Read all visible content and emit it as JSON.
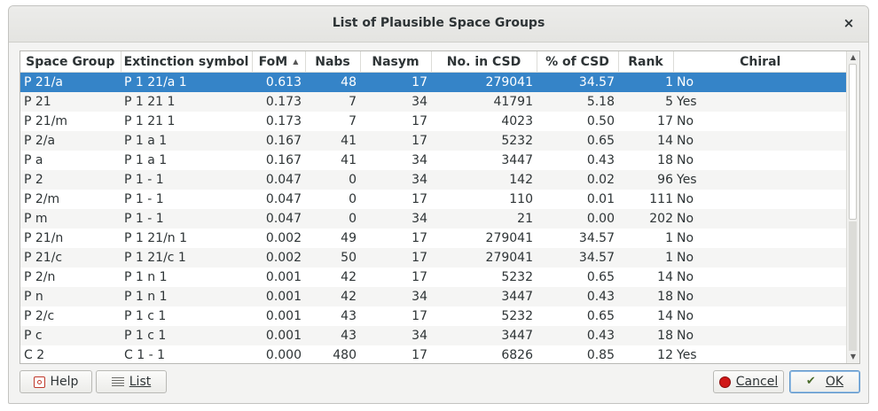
{
  "window": {
    "title": "List of Plausible Space Groups",
    "close_glyph": "×"
  },
  "table": {
    "columns": [
      "Space Group",
      "Extinction symbol",
      "FoM",
      "Nabs",
      "Nasym",
      "No. in CSD",
      "% of CSD",
      "Rank",
      "Chiral"
    ],
    "sort_indicator": "▲",
    "rows": [
      {
        "space_group": "P 21/a",
        "extinction": "P 1 21/a 1",
        "fom": "0.613",
        "nabs": "48",
        "nasym": "17",
        "csd": "279041",
        "pct": "34.57",
        "rank": "1",
        "chiral": "No",
        "selected": true
      },
      {
        "space_group": "P 21",
        "extinction": "P 1 21 1",
        "fom": "0.173",
        "nabs": "7",
        "nasym": "34",
        "csd": "41791",
        "pct": "5.18",
        "rank": "5",
        "chiral": "Yes"
      },
      {
        "space_group": "P 21/m",
        "extinction": "P 1 21 1",
        "fom": "0.173",
        "nabs": "7",
        "nasym": "17",
        "csd": "4023",
        "pct": "0.50",
        "rank": "17",
        "chiral": "No"
      },
      {
        "space_group": "P 2/a",
        "extinction": "P 1 a 1",
        "fom": "0.167",
        "nabs": "41",
        "nasym": "17",
        "csd": "5232",
        "pct": "0.65",
        "rank": "14",
        "chiral": "No"
      },
      {
        "space_group": "P a",
        "extinction": "P 1 a 1",
        "fom": "0.167",
        "nabs": "41",
        "nasym": "34",
        "csd": "3447",
        "pct": "0.43",
        "rank": "18",
        "chiral": "No"
      },
      {
        "space_group": "P 2",
        "extinction": "P 1 - 1",
        "fom": "0.047",
        "nabs": "0",
        "nasym": "34",
        "csd": "142",
        "pct": "0.02",
        "rank": "96",
        "chiral": "Yes"
      },
      {
        "space_group": "P 2/m",
        "extinction": "P 1 - 1",
        "fom": "0.047",
        "nabs": "0",
        "nasym": "17",
        "csd": "110",
        "pct": "0.01",
        "rank": "111",
        "chiral": "No"
      },
      {
        "space_group": "P m",
        "extinction": "P 1 - 1",
        "fom": "0.047",
        "nabs": "0",
        "nasym": "34",
        "csd": "21",
        "pct": "0.00",
        "rank": "202",
        "chiral": "No"
      },
      {
        "space_group": "P 21/n",
        "extinction": "P 1 21/n 1",
        "fom": "0.002",
        "nabs": "49",
        "nasym": "17",
        "csd": "279041",
        "pct": "34.57",
        "rank": "1",
        "chiral": "No"
      },
      {
        "space_group": "P 21/c",
        "extinction": "P 1 21/c 1",
        "fom": "0.002",
        "nabs": "50",
        "nasym": "17",
        "csd": "279041",
        "pct": "34.57",
        "rank": "1",
        "chiral": "No"
      },
      {
        "space_group": "P 2/n",
        "extinction": "P 1 n 1",
        "fom": "0.001",
        "nabs": "42",
        "nasym": "17",
        "csd": "5232",
        "pct": "0.65",
        "rank": "14",
        "chiral": "No"
      },
      {
        "space_group": "P n",
        "extinction": "P 1 n 1",
        "fom": "0.001",
        "nabs": "42",
        "nasym": "34",
        "csd": "3447",
        "pct": "0.43",
        "rank": "18",
        "chiral": "No"
      },
      {
        "space_group": "P 2/c",
        "extinction": "P 1 c 1",
        "fom": "0.001",
        "nabs": "43",
        "nasym": "17",
        "csd": "5232",
        "pct": "0.65",
        "rank": "14",
        "chiral": "No"
      },
      {
        "space_group": "P c",
        "extinction": "P 1 c 1",
        "fom": "0.001",
        "nabs": "43",
        "nasym": "34",
        "csd": "3447",
        "pct": "0.43",
        "rank": "18",
        "chiral": "No"
      },
      {
        "space_group": "C 2",
        "extinction": "C 1 - 1",
        "fom": "0.000",
        "nabs": "480",
        "nasym": "17",
        "csd": "6826",
        "pct": "0.85",
        "rank": "12",
        "chiral": "Yes"
      }
    ]
  },
  "buttons": {
    "help": {
      "label": "Help",
      "icon": "help-icon"
    },
    "list": {
      "label": "List",
      "icon": "list-icon"
    },
    "cancel": {
      "label": "Cancel",
      "icon": "cancel-icon"
    },
    "ok": {
      "label": "OK",
      "icon": "ok-icon"
    }
  },
  "colors": {
    "selection": "#3584c8",
    "accent_border": "#5a93c9"
  }
}
